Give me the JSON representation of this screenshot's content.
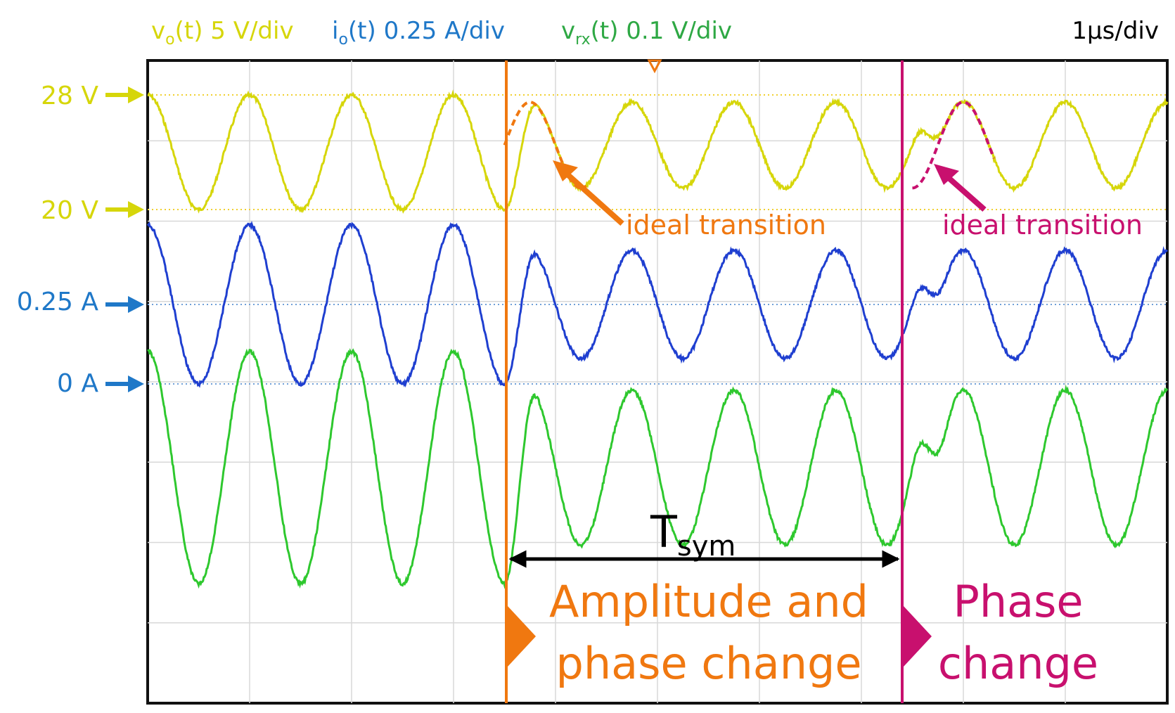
{
  "header": {
    "ch1_name": "v",
    "ch1_sub": "o",
    "ch1_rest": "(t) 5 V/div",
    "ch2_name": "i",
    "ch2_sub": "o",
    "ch2_rest": "(t) 0.25 A/div",
    "ch3_name": "v",
    "ch3_sub": "rx",
    "ch3_rest": "(t) 0.1 V/div",
    "timebase": "1µs/div"
  },
  "levels": [
    {
      "label": "28 V",
      "color": "#d6d60a"
    },
    {
      "label": "20 V",
      "color": "#d6d60a"
    },
    {
      "label": "0.25 A",
      "color": "#1f78c8"
    },
    {
      "label": "0 A",
      "color": "#1f78c8"
    }
  ],
  "annotations": {
    "ideal_1": "ideal transition",
    "ideal_2": "ideal transition",
    "tsym_main": "T",
    "tsym_sub": "sym",
    "event1_line1": "Amplitude and",
    "event1_line2": "phase change",
    "event2_line1": "Phase",
    "event2_line2": "change"
  },
  "colors": {
    "vo": "#d6d60a",
    "io": "#1f3fd0",
    "vrx": "#2ec82e",
    "event1": "#f07810",
    "event2": "#c8106e",
    "grid": "#d8d8d8",
    "frame": "#111111",
    "tsym_arrow": "#000000"
  },
  "chart_data": {
    "type": "line",
    "x_unit": "µs",
    "x_range": [
      0,
      10
    ],
    "divisions": {
      "x": 10,
      "y": 8
    },
    "grid": true,
    "period_us": 1,
    "event_times_us": [
      3.5,
      7.5
    ],
    "series": [
      {
        "name": "vo(t)",
        "unit": "V",
        "segments": [
          {
            "t0": 0,
            "t1": 3.5,
            "center": 24,
            "amplitude": 4.0,
            "phase_deg": 90
          },
          {
            "t0": 3.5,
            "t1": 7.5,
            "center": 24.5,
            "amplitude": 3.0,
            "phase_deg": 180
          },
          {
            "t0": 7.5,
            "t1": 10,
            "center": 24.5,
            "amplitude": 3.0,
            "phase_deg": 90
          }
        ]
      },
      {
        "name": "io(t)",
        "unit": "A",
        "segments": [
          {
            "t0": 0,
            "t1": 3.5,
            "center": 0.25,
            "amplitude": 0.25,
            "phase_deg": 90
          },
          {
            "t0": 3.5,
            "t1": 7.5,
            "center": 0.25,
            "amplitude": 0.17,
            "phase_deg": 180
          },
          {
            "t0": 7.5,
            "t1": 10,
            "center": 0.25,
            "amplitude": 0.17,
            "phase_deg": 90
          }
        ]
      },
      {
        "name": "vrx(t)",
        "unit": "V",
        "segments": [
          {
            "t0": 0,
            "t1": 3.5,
            "center": 0,
            "amplitude": 0.15,
            "phase_deg": 90
          },
          {
            "t0": 3.5,
            "t1": 7.5,
            "center": 0,
            "amplitude": 0.1,
            "phase_deg": 180
          },
          {
            "t0": 7.5,
            "t1": 10,
            "center": 0,
            "amplitude": 0.1,
            "phase_deg": 90
          }
        ]
      }
    ]
  }
}
